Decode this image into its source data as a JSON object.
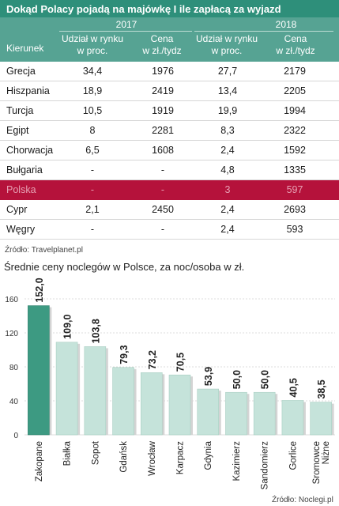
{
  "table": {
    "title": "Dokąd Polacy pojadą na majówkę I ile zapłacą za wyjazd",
    "year_1": "2017",
    "year_2": "2018",
    "col_direction": "Kierunek",
    "col_share": "Udział w rynku w proc.",
    "col_share_l1": "Udział w rynku",
    "col_share_l2": "w proc.",
    "col_price_l1": "Cena",
    "col_price_l2": "w zł./tydz",
    "rows": [
      {
        "name": "Grecja",
        "share_2017": "34,4",
        "price_2017": "1976",
        "share_2018": "27,7",
        "price_2018": "2179"
      },
      {
        "name": "Hiszpania",
        "share_2017": "18,9",
        "price_2017": "2419",
        "share_2018": "13,4",
        "price_2018": "2205"
      },
      {
        "name": "Turcja",
        "share_2017": "10,5",
        "price_2017": "1919",
        "share_2018": "19,9",
        "price_2018": "1994"
      },
      {
        "name": "Egipt",
        "share_2017": "8",
        "price_2017": "2281",
        "share_2018": "8,3",
        "price_2018": "2322"
      },
      {
        "name": "Chorwacja",
        "share_2017": "6,5",
        "price_2017": "1608",
        "share_2018": "2,4",
        "price_2018": "1592"
      },
      {
        "name": "Bułgaria",
        "share_2017": "-",
        "price_2017": "-",
        "share_2018": "4,8",
        "price_2018": "1335"
      },
      {
        "name": "Polska",
        "share_2017": "-",
        "price_2017": "-",
        "share_2018": "3",
        "price_2018": "597"
      },
      {
        "name": "Cypr",
        "share_2017": "2,1",
        "price_2017": "2450",
        "share_2018": "2,4",
        "price_2018": "2693"
      },
      {
        "name": "Węgry",
        "share_2017": "-",
        "price_2017": "-",
        "share_2018": "2,4",
        "price_2018": "593"
      }
    ],
    "source": "Źródło: Travelplanet.pl"
  },
  "colors": {
    "header_dark": "#2e8f7a",
    "header_light": "#56a393",
    "highlight_row": "#b5123b",
    "bar_highlight": "#3d9a82",
    "bar": "#c5e3da"
  },
  "chart_data": {
    "type": "bar",
    "title": "Średnie ceny noclegów w Polsce, za noc/osoba  w zł.",
    "categories": [
      "Zakopane",
      "Białka",
      "Sopot",
      "Gdańsk",
      "Wrocław",
      "Karpacz",
      "Gdynia",
      "Kazimierz",
      "Sandomierz",
      "Gorlice",
      "Sromowce Niżne"
    ],
    "category_lines": [
      [
        "Zakopane"
      ],
      [
        "Białka"
      ],
      [
        "Sopot"
      ],
      [
        "Gdańsk"
      ],
      [
        "Wrocław"
      ],
      [
        "Karpacz"
      ],
      [
        "Gdynia"
      ],
      [
        "Kazimierz"
      ],
      [
        "Sandomierz"
      ],
      [
        "Gorlice"
      ],
      [
        "Sromowce",
        "Niżne"
      ]
    ],
    "values": [
      152.0,
      109.0,
      103.8,
      79.3,
      73.2,
      70.5,
      53.9,
      50.0,
      50.0,
      40.5,
      38.5
    ],
    "value_labels": [
      "152,0",
      "109,0",
      "103,8",
      "79,3",
      "73,2",
      "70,5",
      "53,9",
      "50,0",
      "50,0",
      "40,5",
      "38,5"
    ],
    "highlight_index": 0,
    "yticks": [
      0,
      40,
      80,
      120,
      160
    ],
    "ylim": [
      0,
      160
    ],
    "grid": true,
    "source": "Źródło: Noclegi.pl"
  }
}
